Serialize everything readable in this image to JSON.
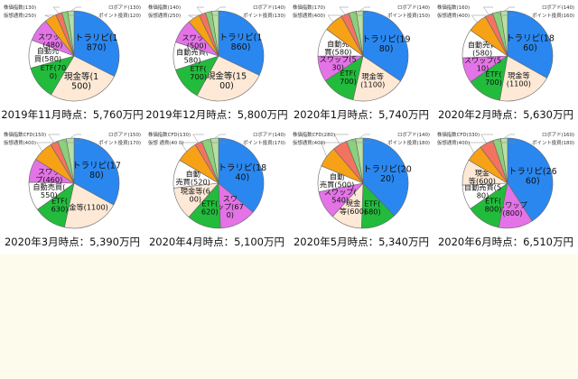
{
  "colors": {
    "トラリピ": "#2a87ef",
    "現金等": "#fde9d6",
    "ETF": "#22bb3c",
    "自動売買": "#ffffff",
    "スワップ": "#e373e6",
    "仮想通貨": "#f7a116",
    "株価指数CFD": "#f37360",
    "株価指数": "#f37360",
    "ポイント投資": "#8bd07b",
    "ロボアド": "#b6e0a5"
  },
  "chart_data": [
    {
      "type": "pie",
      "title": "2019年11月時点：5,760万円",
      "slices": [
        {
          "name": "トラリピ",
          "value": 1870,
          "label": "トラリピ(1\n870)"
        },
        {
          "name": "現金等",
          "value": 1500,
          "label": "現金等(1\n500)"
        },
        {
          "name": "ETF",
          "value": 700,
          "label": "ETF(70\n0)"
        },
        {
          "name": "自動売買",
          "value": 580,
          "label": "自動売\n買(580)"
        },
        {
          "name": "スワップ",
          "value": 480,
          "label": "スワップ\n(480)"
        },
        {
          "name": "仮想通貨",
          "value": 250,
          "label": "仮想通貨(250)"
        },
        {
          "name": "株価指数",
          "value": 130,
          "label": "株価指数(130)"
        },
        {
          "name": "ポイント投資",
          "value": 120,
          "label": "ポイント投資(120)"
        },
        {
          "name": "ロボアド",
          "value": 130,
          "label": "ロボアド(130)"
        }
      ]
    },
    {
      "type": "pie",
      "title": "2019年12月時点：5,800万円",
      "slices": [
        {
          "name": "トラリピ",
          "value": 1860,
          "label": "トラリピ(1\n860)"
        },
        {
          "name": "現金等",
          "value": 1500,
          "label": "現金等(15\n00)"
        },
        {
          "name": "ETF",
          "value": 700,
          "label": "ETF(\n700)"
        },
        {
          "name": "自動売買",
          "value": 580,
          "label": "自動売買(\n580)"
        },
        {
          "name": "スワップ",
          "value": 500,
          "label": "スワップ\n(500)"
        },
        {
          "name": "仮想通貨",
          "value": 250,
          "label": "仮想通貨(250)"
        },
        {
          "name": "株価指数",
          "value": 140,
          "label": "株価指数(140)"
        },
        {
          "name": "ポイント投資",
          "value": 130,
          "label": "ポイント投資(130)"
        },
        {
          "name": "ロボアド",
          "value": 140,
          "label": "ロボアド(140)"
        }
      ]
    },
    {
      "type": "pie",
      "title": "2020年1月時点：5,740万円",
      "slices": [
        {
          "name": "トラリピ",
          "value": 1980,
          "label": "トラリピ(19\n80)"
        },
        {
          "name": "現金等",
          "value": 1100,
          "label": "現金等\n(1100)"
        },
        {
          "name": "ETF",
          "value": 700,
          "label": "ETF(\n700)"
        },
        {
          "name": "スワップ",
          "value": 530,
          "label": "スワップ(5\n30)"
        },
        {
          "name": "自動売買",
          "value": 580,
          "label": "自動売\n買(580)"
        },
        {
          "name": "仮想通貨",
          "value": 400,
          "label": "仮想通貨(400)"
        },
        {
          "name": "株価指数",
          "value": 170,
          "label": "株価指数(170)"
        },
        {
          "name": "ポイント投資",
          "value": 150,
          "label": "ポイント投資(150)"
        },
        {
          "name": "ロボアド",
          "value": 140,
          "label": "ロボアド(140)"
        }
      ]
    },
    {
      "type": "pie",
      "title": "2020年2月時点：5,630万円",
      "slices": [
        {
          "name": "トラリピ",
          "value": 1860,
          "label": "トラリピ(18\n60)"
        },
        {
          "name": "現金等",
          "value": 1100,
          "label": "現金等\n(1100)"
        },
        {
          "name": "ETF",
          "value": 700,
          "label": "ETF(\n700)"
        },
        {
          "name": "スワップ",
          "value": 510,
          "label": "スワップ(5\n10)"
        },
        {
          "name": "自動売買",
          "value": 580,
          "label": "自動売買\n(580)"
        },
        {
          "name": "仮想通貨",
          "value": 400,
          "label": "仮想通貨(400)"
        },
        {
          "name": "株価指数",
          "value": 160,
          "label": "株価指数(160)"
        },
        {
          "name": "ポイント投資",
          "value": 160,
          "label": "ポイント投資(160)"
        },
        {
          "name": "ロボアド",
          "value": 140,
          "label": "ロボアド(140)"
        }
      ]
    },
    {
      "type": "pie",
      "title": "2020年3月時点：5,390万円",
      "slices": [
        {
          "name": "トラリピ",
          "value": 1780,
          "label": "トラリピ(17\n80)"
        },
        {
          "name": "現金等",
          "value": 1100,
          "label": "現金等(1100)"
        },
        {
          "name": "ETF",
          "value": 630,
          "label": "ETF(\n630)"
        },
        {
          "name": "自動売買",
          "value": 550,
          "label": "自動売買(\n550)"
        },
        {
          "name": "スワップ",
          "value": 460,
          "label": "スワッ\nプ(460)"
        },
        {
          "name": "仮想通貨",
          "value": 400,
          "label": "仮想通貨(400)"
        },
        {
          "name": "株価指数CFD",
          "value": 150,
          "label": "株価指数CFD(150)"
        },
        {
          "name": "ポイント投資",
          "value": 170,
          "label": "ポイント投資(170)"
        },
        {
          "name": "ロボアド",
          "value": 150,
          "label": "ロボアド(150)"
        }
      ]
    },
    {
      "type": "pie",
      "title": "2020年4月時点：5,100万円",
      "slices": [
        {
          "name": "トラリピ",
          "value": 1840,
          "label": "トラリピ(18\n40)"
        },
        {
          "name": "スワップ",
          "value": 670,
          "label": "スワ\nップ(67\n0)"
        },
        {
          "name": "ETF",
          "value": 620,
          "label": "ETF(\n620)"
        },
        {
          "name": "現金等",
          "value": 600,
          "label": "現金等(6\n00)"
        },
        {
          "name": "自動売買",
          "value": 520,
          "label": "自動\n売買(520)"
        },
        {
          "name": "仮想通貨",
          "value": 400,
          "label": "仮想\n通貨(40\n0)"
        },
        {
          "name": "株価指数CFD",
          "value": 130,
          "label": "株価指数CFD(130)"
        },
        {
          "name": "ポイント投資",
          "value": 170,
          "label": "ポイント投資(170)"
        },
        {
          "name": "ロボアド",
          "value": 140,
          "label": "ロボアド(140)"
        }
      ]
    },
    {
      "type": "pie",
      "title": "2020年5月時点：5,340万円",
      "slices": [
        {
          "name": "トラリピ",
          "value": 2020,
          "label": "トラリピ(20\n20)"
        },
        {
          "name": "ETF",
          "value": 680,
          "label": "ETF(\n680)"
        },
        {
          "name": "現金等",
          "value": 600,
          "label": "現金\n等(600)"
        },
        {
          "name": "スワップ",
          "value": 540,
          "label": "スワップ(\n540)"
        },
        {
          "name": "自動売買",
          "value": 500,
          "label": "自動\n売買(500)"
        },
        {
          "name": "仮想通貨",
          "value": 400,
          "label": "仮想通貨(400)"
        },
        {
          "name": "株価指数CFD",
          "value": 280,
          "label": "株価指数CFD(280)"
        },
        {
          "name": "ポイント投資",
          "value": 180,
          "label": "ポイント投資(180)"
        },
        {
          "name": "ロボアド",
          "value": 140,
          "label": "ロボアド(140)"
        }
      ]
    },
    {
      "type": "pie",
      "title": "2020年6月時点：6,510万円",
      "slices": [
        {
          "name": "トラリピ",
          "value": 2660,
          "label": "トラリピ(26\n60)"
        },
        {
          "name": "スワップ",
          "value": 800,
          "label": "スワップ\n(800)"
        },
        {
          "name": "ETF",
          "value": 800,
          "label": "ETF(\n800)"
        },
        {
          "name": "自動売買",
          "value": 580,
          "label": "自動売買(5\n80)"
        },
        {
          "name": "現金等",
          "value": 600,
          "label": "現金\n等(600)"
        },
        {
          "name": "仮想通貨",
          "value": 400,
          "label": "仮想通貨(400)"
        },
        {
          "name": "株価指数CFD",
          "value": 330,
          "label": "株価指数CFD(330)"
        },
        {
          "name": "ポイント投資",
          "value": 180,
          "label": "ポイント投資(180)"
        },
        {
          "name": "ロボアド",
          "value": 160,
          "label": "ロボアド(160)"
        }
      ]
    }
  ]
}
